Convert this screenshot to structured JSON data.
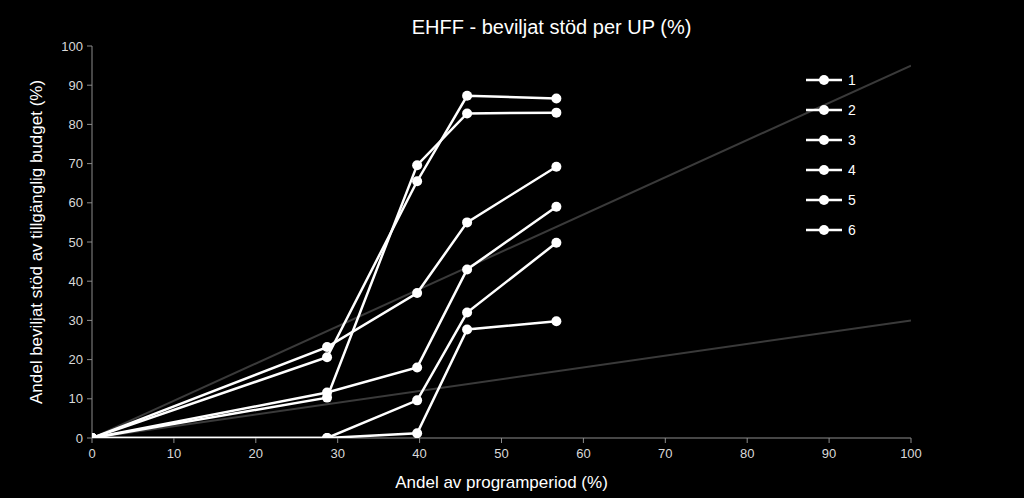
{
  "chart_data": {
    "type": "line",
    "title": "EHFF - beviljat stöd per UP (%)",
    "x_label": "Andel av programperiod (%)",
    "y_label": "Andel beviljat stöd av tillgänglig budget (%)",
    "x": [
      0,
      28.7,
      39.7,
      45.8,
      56.7
    ],
    "series": [
      {
        "name": "1",
        "color": "#ffffff",
        "marker": "circle",
        "values": [
          0,
          20.6,
          65.5,
          87.3,
          86.6
        ]
      },
      {
        "name": "2",
        "color": "#ffffff",
        "marker": "circle",
        "values": [
          0,
          10.3,
          69.6,
          82.8,
          83.0
        ]
      },
      {
        "name": "3",
        "color": "#ffffff",
        "marker": "circle",
        "values": [
          0,
          23.2,
          37.0,
          55.0,
          69.2
        ]
      },
      {
        "name": "4",
        "color": "#ffffff",
        "marker": "circle",
        "values": [
          0,
          11.6,
          18.0,
          43.0,
          59.0
        ]
      },
      {
        "name": "5",
        "color": "#ffffff",
        "marker": "circle",
        "values": [
          0,
          0,
          9.6,
          32.0,
          49.8
        ]
      },
      {
        "name": "6",
        "color": "#ffffff",
        "marker": "circle",
        "values": [
          0,
          0,
          1.2,
          27.7,
          29.8
        ]
      }
    ],
    "reference_lines": [
      {
        "x": [
          0,
          100
        ],
        "values": [
          0,
          95
        ],
        "color": "#3a3a3a"
      },
      {
        "x": [
          0,
          100
        ],
        "values": [
          0,
          30
        ],
        "color": "#3a3a3a"
      }
    ],
    "xlim": [
      0,
      100
    ],
    "ylim": [
      0,
      100
    ],
    "xticks": [
      0,
      10,
      20,
      30,
      40,
      50,
      60,
      70,
      80,
      90,
      100
    ],
    "yticks": [
      0,
      10,
      20,
      30,
      40,
      50,
      60,
      70,
      80,
      90,
      100
    ],
    "grid": false,
    "legend": "top-right"
  }
}
